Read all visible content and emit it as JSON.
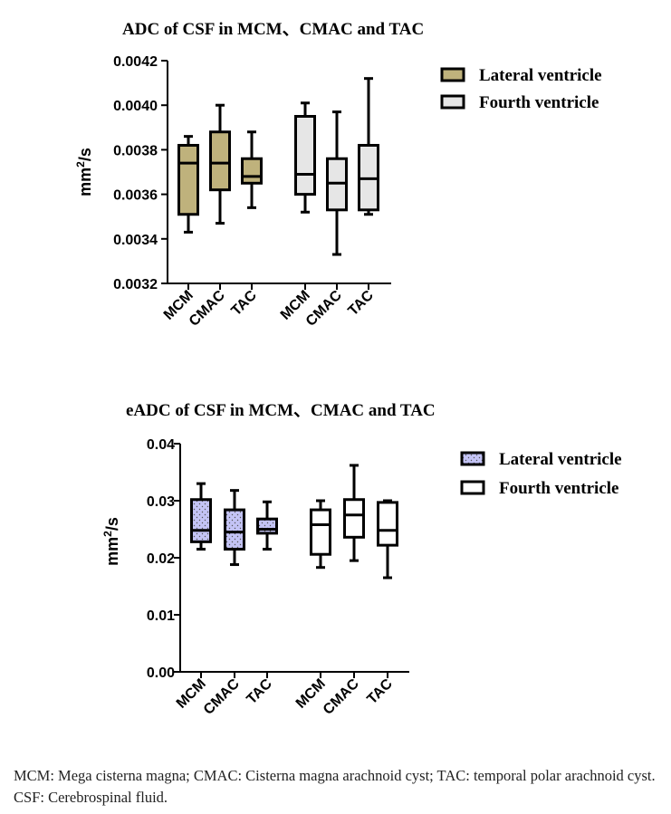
{
  "chart_data": [
    {
      "type": "boxplot",
      "title": "ADC of CSF in MCM、CMAC and TAC",
      "ylabel_base": "mm",
      "ylabel_sup": "2",
      "ylabel_tail": "/s",
      "ylim": [
        0.0032,
        0.0042
      ],
      "yticks": [
        "0.0032",
        "0.0034",
        "0.0036",
        "0.0038",
        "0.0040",
        "0.0042"
      ],
      "ytick_values": [
        0.0032,
        0.0034,
        0.0036,
        0.0038,
        0.004,
        0.0042
      ],
      "categories": [
        "MCM",
        "CMAC",
        "TAC",
        "MCM",
        "CMAC",
        "TAC"
      ],
      "series": [
        {
          "name": "Lateral ventricle",
          "color": "#BFB27C",
          "pattern": "none",
          "boxes": [
            {
              "category": "MCM",
              "min": 0.00343,
              "q1": 0.00351,
              "median": 0.00374,
              "q3": 0.00382,
              "max": 0.00386
            },
            {
              "category": "CMAC",
              "min": 0.00347,
              "q1": 0.00362,
              "median": 0.00374,
              "q3": 0.00388,
              "max": 0.004
            },
            {
              "category": "TAC",
              "min": 0.00354,
              "q1": 0.00365,
              "median": 0.00368,
              "q3": 0.00376,
              "max": 0.00388
            }
          ]
        },
        {
          "name": "Fourth ventricle",
          "color": "#E6E6E6",
          "pattern": "none",
          "boxes": [
            {
              "category": "MCM",
              "min": 0.00352,
              "q1": 0.0036,
              "median": 0.00369,
              "q3": 0.00395,
              "max": 0.00401
            },
            {
              "category": "CMAC",
              "min": 0.00333,
              "q1": 0.00353,
              "median": 0.00365,
              "q3": 0.00376,
              "max": 0.00397
            },
            {
              "category": "TAC",
              "min": 0.00351,
              "q1": 0.00353,
              "median": 0.00367,
              "q3": 0.00382,
              "max": 0.00412
            }
          ]
        }
      ]
    },
    {
      "type": "boxplot",
      "title": "eADC of CSF in MCM、CMAC and TAC",
      "ylabel_base": "mm",
      "ylabel_sup": "2",
      "ylabel_tail": "/s",
      "ylim": [
        0.0,
        0.04
      ],
      "yticks": [
        "0.00",
        "0.01",
        "0.02",
        "0.03",
        "0.04"
      ],
      "ytick_values": [
        0.0,
        0.01,
        0.02,
        0.03,
        0.04
      ],
      "categories": [
        "MCM",
        "CMAC",
        "TAC",
        "MCM",
        "CMAC",
        "TAC"
      ],
      "series": [
        {
          "name": "Lateral ventricle",
          "color": "#C3C3F5",
          "pattern": "dots",
          "boxes": [
            {
              "category": "MCM",
              "min": 0.0215,
              "q1": 0.0228,
              "median": 0.0248,
              "q3": 0.0302,
              "max": 0.033
            },
            {
              "category": "CMAC",
              "min": 0.0188,
              "q1": 0.0215,
              "median": 0.0245,
              "q3": 0.0284,
              "max": 0.0318
            },
            {
              "category": "TAC",
              "min": 0.0215,
              "q1": 0.0243,
              "median": 0.025,
              "q3": 0.0268,
              "max": 0.0298
            }
          ]
        },
        {
          "name": "Fourth ventricle",
          "color": "#FFFFFF",
          "pattern": "none",
          "boxes": [
            {
              "category": "MCM",
              "min": 0.0183,
              "q1": 0.0206,
              "median": 0.0258,
              "q3": 0.0284,
              "max": 0.03
            },
            {
              "category": "CMAC",
              "min": 0.0195,
              "q1": 0.0236,
              "median": 0.0275,
              "q3": 0.0302,
              "max": 0.0362
            },
            {
              "category": "TAC",
              "min": 0.0165,
              "q1": 0.0222,
              "median": 0.0248,
              "q3": 0.0297,
              "max": 0.03
            }
          ]
        }
      ]
    }
  ],
  "caption": "MCM: Mega cisterna magna; CMAC: Cisterna magna arachnoid cyst; TAC: temporal polar arachnoid cyst. CSF: Cerebrospinal fluid."
}
